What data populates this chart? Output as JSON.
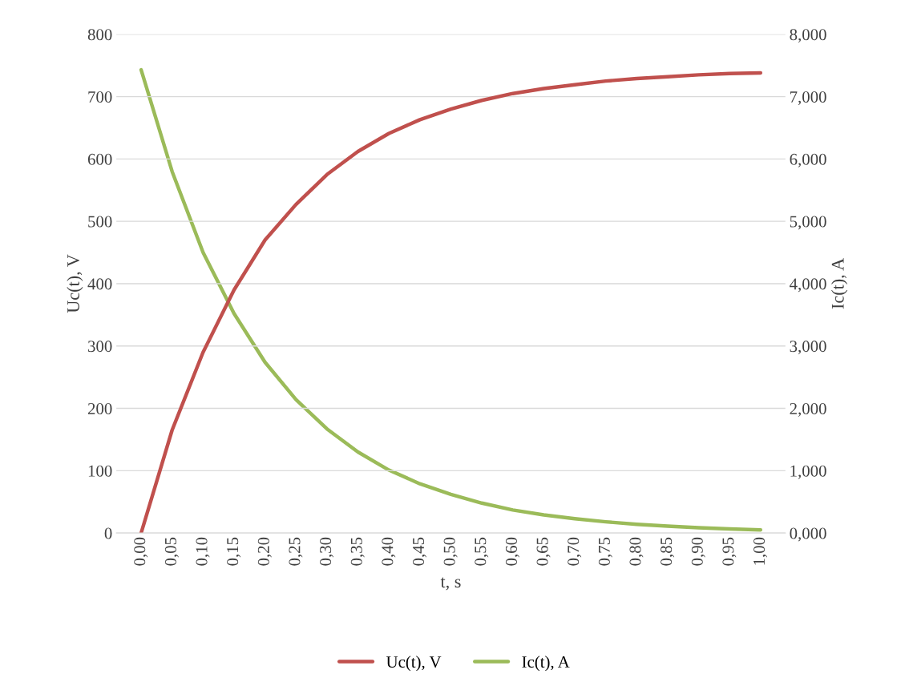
{
  "chart_data": {
    "type": "line",
    "xlabel": "t, s",
    "ylabel": "Uc(t), V",
    "y2label": "Ic(t), A",
    "categories": [
      "0,00",
      "0,05",
      "0,10",
      "0,15",
      "0,20",
      "0,25",
      "0,30",
      "0,35",
      "0,40",
      "0,45",
      "0,50",
      "0,55",
      "0,60",
      "0,65",
      "0,70",
      "0,75",
      "0,80",
      "0,85",
      "0,90",
      "0,95",
      "1,00"
    ],
    "series": [
      {
        "name": "Uc(t), V",
        "color": "#c0504d",
        "values": [
          0,
          165,
          290,
          390,
          470,
          527,
          575,
          612,
          641,
          663,
          680,
          694,
          705,
          713,
          719,
          725,
          729,
          732,
          735,
          737,
          738
        ]
      },
      {
        "name": "Ic(t), A",
        "color": "#9bbb59",
        "axis": "y2",
        "values": [
          7.43,
          5.8,
          4.5,
          3.52,
          2.74,
          2.14,
          1.67,
          1.3,
          1.01,
          0.79,
          0.62,
          0.48,
          0.37,
          0.29,
          0.23,
          0.18,
          0.14,
          0.11,
          0.085,
          0.065,
          0.05
        ]
      }
    ],
    "ylim": [
      0,
      800
    ],
    "yticks": [
      0,
      100,
      200,
      300,
      400,
      500,
      600,
      700,
      800
    ],
    "y2lim": [
      0,
      8
    ],
    "y2ticks": [
      {
        "value": 0,
        "label": "0,000"
      },
      {
        "value": 1,
        "label": "1,000"
      },
      {
        "value": 2,
        "label": "2,000"
      },
      {
        "value": 3,
        "label": "3,000"
      },
      {
        "value": 4,
        "label": "4,000"
      },
      {
        "value": 5,
        "label": "5,000"
      },
      {
        "value": 6,
        "label": "6,000"
      },
      {
        "value": 7,
        "label": "7,000"
      },
      {
        "value": 8,
        "label": "8,000"
      }
    ],
    "grid": "y",
    "legend": "bottom",
    "marker": "none",
    "line_style": "solid"
  }
}
